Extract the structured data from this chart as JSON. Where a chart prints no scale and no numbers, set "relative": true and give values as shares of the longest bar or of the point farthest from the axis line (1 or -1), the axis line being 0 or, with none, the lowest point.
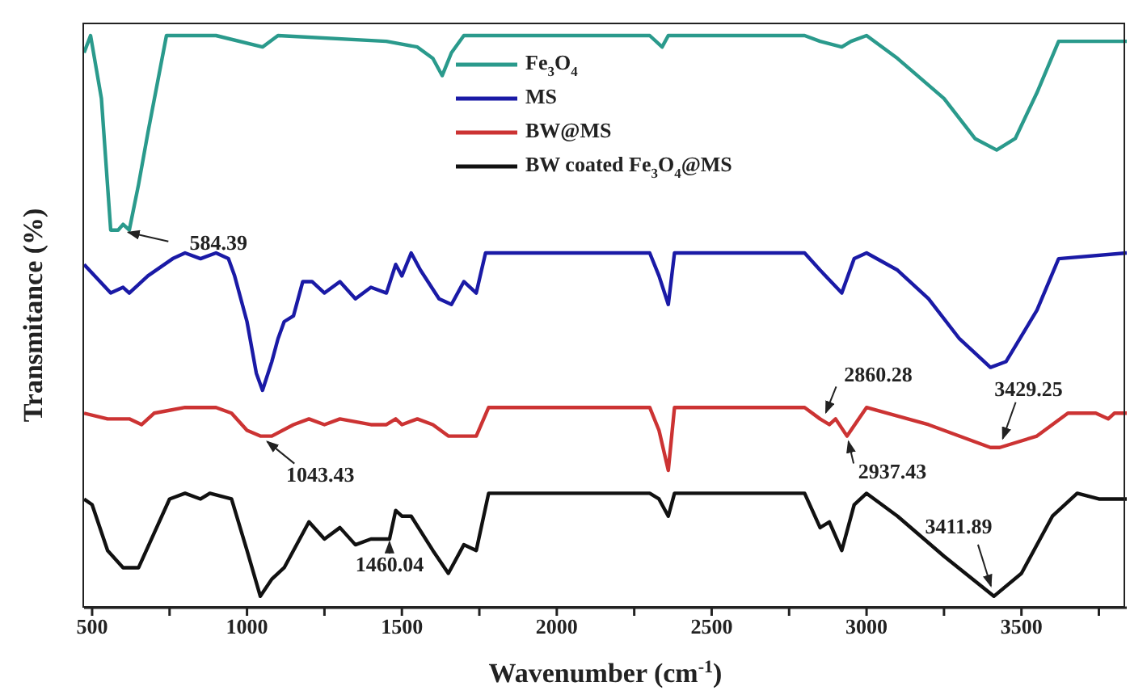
{
  "chart_data": {
    "type": "line",
    "relative": true,
    "xlabel": "Wavenumber (cm$^{-1}$)",
    "ylabel": "Transmitance (%)",
    "xlim": [
      474,
      3840
    ],
    "xticks": [
      500,
      {
        "value": 750,
        "label": null
      },
      1000,
      {
        "value": 1250,
        "label": null
      },
      1500,
      {
        "value": 1750,
        "label": null
      },
      2000,
      {
        "value": 2250,
        "label": null
      },
      2500,
      {
        "value": 2750,
        "label": null
      },
      3000,
      {
        "value": 3250,
        "label": null
      },
      3500,
      {
        "value": 3750,
        "label": null
      }
    ],
    "legend": "top",
    "marker": "none",
    "line_style": "solid",
    "series": [
      {
        "name": "Fe$_{3}$O$_{4}$",
        "color": "#2a9a8c",
        "x": [
          474,
          495,
          530,
          560,
          584,
          600,
          620,
          650,
          680,
          740,
          900,
          1050,
          1100,
          1450,
          1550,
          1600,
          1630,
          1660,
          1700,
          2300,
          2340,
          2360,
          2800,
          2850,
          2920,
          2950,
          3000,
          3100,
          3250,
          3350,
          3420,
          3480,
          3550,
          3620,
          3840
        ],
        "values": [
          0.97,
          1.0,
          0.89,
          0.66,
          0.66,
          0.67,
          0.66,
          0.74,
          0.83,
          1.0,
          1.0,
          0.98,
          1.0,
          0.99,
          0.98,
          0.96,
          0.93,
          0.97,
          1.0,
          1.0,
          0.98,
          1.0,
          1.0,
          0.99,
          0.98,
          0.99,
          1.0,
          0.96,
          0.89,
          0.82,
          0.8,
          0.82,
          0.9,
          0.99,
          0.99
        ]
      },
      {
        "name": "MS",
        "color": "#1a1aa6",
        "x": [
          474,
          560,
          600,
          620,
          680,
          760,
          800,
          850,
          900,
          940,
          960,
          1000,
          1030,
          1050,
          1080,
          1100,
          1120,
          1150,
          1180,
          1210,
          1250,
          1300,
          1350,
          1400,
          1450,
          1480,
          1500,
          1530,
          1560,
          1620,
          1660,
          1700,
          1740,
          1770,
          2300,
          2330,
          2360,
          2380,
          2800,
          2850,
          2920,
          2960,
          3000,
          3100,
          3200,
          3300,
          3400,
          3450,
          3550,
          3620,
          3840
        ],
        "values": [
          0.6,
          0.55,
          0.56,
          0.55,
          0.58,
          0.61,
          0.62,
          0.61,
          0.62,
          0.61,
          0.58,
          0.5,
          0.41,
          0.38,
          0.43,
          0.47,
          0.5,
          0.51,
          0.57,
          0.57,
          0.55,
          0.57,
          0.54,
          0.56,
          0.55,
          0.6,
          0.58,
          0.62,
          0.59,
          0.54,
          0.53,
          0.57,
          0.55,
          0.62,
          0.62,
          0.58,
          0.53,
          0.62,
          0.62,
          0.59,
          0.55,
          0.61,
          0.62,
          0.59,
          0.54,
          0.47,
          0.42,
          0.43,
          0.52,
          0.61,
          0.62
        ]
      },
      {
        "name": "BW@MS",
        "color": "#cc3333",
        "x": [
          474,
          550,
          620,
          660,
          700,
          800,
          900,
          950,
          1000,
          1043,
          1080,
          1150,
          1200,
          1250,
          1300,
          1400,
          1450,
          1480,
          1500,
          1550,
          1600,
          1650,
          1700,
          1740,
          1780,
          2300,
          2330,
          2360,
          2380,
          2800,
          2850,
          2880,
          2900,
          2937,
          3000,
          3200,
          3400,
          3430,
          3550,
          3650,
          3740,
          3780,
          3800,
          3840
        ],
        "values": [
          0.34,
          0.33,
          0.33,
          0.32,
          0.34,
          0.35,
          0.35,
          0.34,
          0.31,
          0.3,
          0.3,
          0.32,
          0.33,
          0.32,
          0.33,
          0.32,
          0.32,
          0.33,
          0.32,
          0.33,
          0.32,
          0.3,
          0.3,
          0.3,
          0.35,
          0.35,
          0.31,
          0.24,
          0.35,
          0.35,
          0.33,
          0.32,
          0.33,
          0.3,
          0.35,
          0.32,
          0.28,
          0.28,
          0.3,
          0.34,
          0.34,
          0.33,
          0.34,
          0.34
        ]
      },
      {
        "name": "BW coated Fe$_{3}$O$_{4}$@MS",
        "color": "#111111",
        "x": [
          474,
          500,
          550,
          600,
          650,
          700,
          750,
          800,
          850,
          880,
          950,
          1000,
          1043,
          1080,
          1120,
          1150,
          1200,
          1250,
          1300,
          1350,
          1400,
          1460,
          1480,
          1500,
          1530,
          1600,
          1650,
          1700,
          1740,
          1780,
          2300,
          2330,
          2360,
          2380,
          2800,
          2850,
          2880,
          2920,
          2960,
          3000,
          3100,
          3250,
          3411,
          3500,
          3600,
          3680,
          3750,
          3840
        ],
        "values": [
          0.19,
          0.18,
          0.1,
          0.07,
          0.07,
          0.13,
          0.19,
          0.2,
          0.19,
          0.2,
          0.19,
          0.1,
          0.02,
          0.05,
          0.07,
          0.1,
          0.15,
          0.12,
          0.14,
          0.11,
          0.12,
          0.12,
          0.17,
          0.16,
          0.16,
          0.1,
          0.06,
          0.11,
          0.1,
          0.2,
          0.2,
          0.19,
          0.16,
          0.2,
          0.2,
          0.14,
          0.15,
          0.1,
          0.18,
          0.2,
          0.16,
          0.09,
          0.02,
          0.06,
          0.16,
          0.2,
          0.19,
          0.19
        ]
      }
    ],
    "annotations": [
      {
        "text": "584.39",
        "x": 584.39,
        "y": 0.66
      },
      {
        "text": "1043.43",
        "x": 1043.43,
        "y": 0.3
      },
      {
        "text": "1460.04",
        "x": 1460.04,
        "y": 0.12
      },
      {
        "text": "2860.28",
        "x": 2860.28,
        "y": 0.33
      },
      {
        "text": "2937.43",
        "x": 2937.43,
        "y": 0.3
      },
      {
        "text": "3429.25",
        "x": 3429.25,
        "y": 0.28
      },
      {
        "text": "3411.89",
        "x": 3411.89,
        "y": 0.02
      }
    ]
  }
}
